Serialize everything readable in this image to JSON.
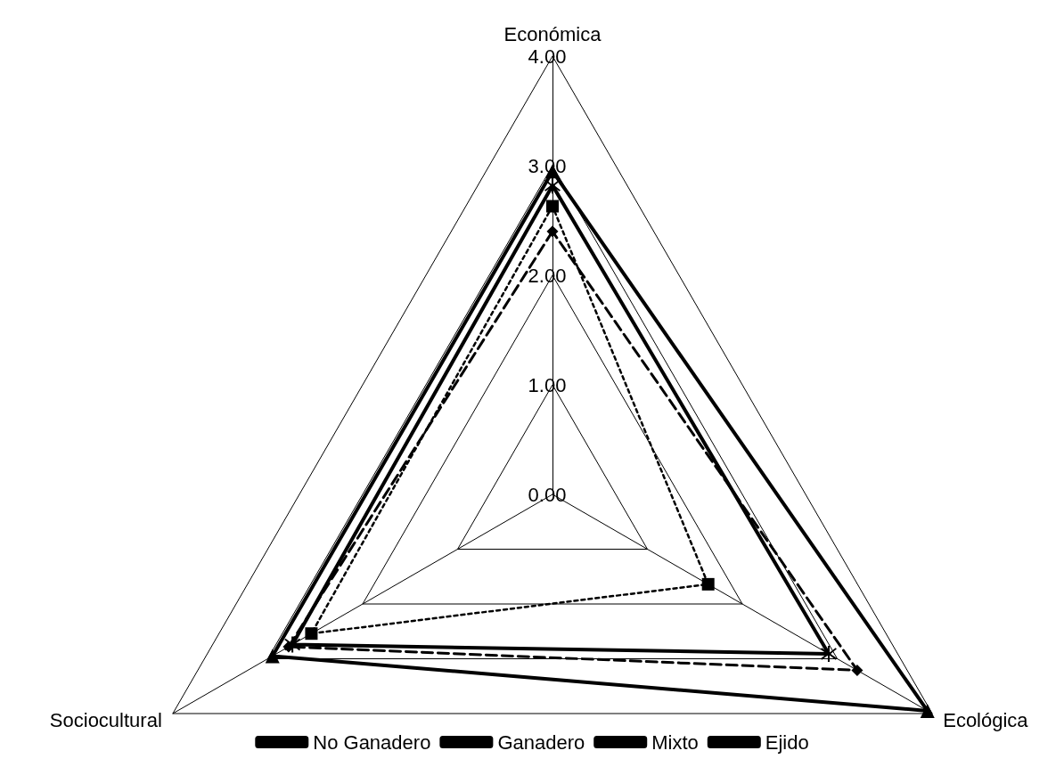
{
  "chart_data": {
    "type": "radar",
    "categories": [
      "Económica",
      "Ecológica",
      "Sociocultural"
    ],
    "ylim": [
      0,
      4
    ],
    "yticks": [
      {
        "value": 0,
        "label": "0.00"
      },
      {
        "value": 1,
        "label": "1.00"
      },
      {
        "value": 2,
        "label": "2.00"
      },
      {
        "value": 3,
        "label": "3.00"
      },
      {
        "value": 4,
        "label": "4.00"
      }
    ],
    "grid": true,
    "legend": "bottom",
    "series": [
      {
        "name": "No Ganadero",
        "color": "#000000",
        "values": [
          2.4,
          3.21,
          2.78
        ],
        "marker": "diamond",
        "line_style": "dashed"
      },
      {
        "name": "Ganadero",
        "color": "#000000",
        "values": [
          2.63,
          1.64,
          2.54
        ],
        "marker": "square",
        "line_style": "dotted"
      },
      {
        "name": "Mixto",
        "color": "#000000",
        "values": [
          2.95,
          3.95,
          2.95
        ],
        "marker": "triangle",
        "line_style": "solid"
      },
      {
        "name": "Ejido",
        "color": "#000000",
        "values": [
          2.82,
          2.91,
          2.74
        ],
        "marker": "cross",
        "line_style": "solid"
      }
    ]
  }
}
